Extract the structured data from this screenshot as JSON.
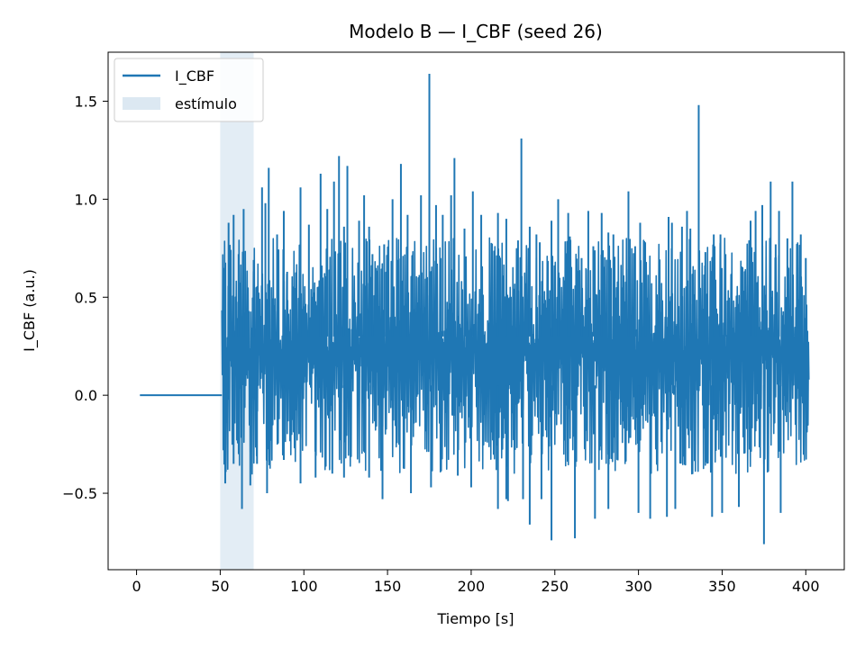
{
  "chart_data": {
    "type": "line",
    "title": "Modelo B — I_CBF (seed 26)",
    "xlabel": "Tiempo [s]",
    "ylabel": "I_CBF (a.u.)",
    "xlim": [
      -17,
      423
    ],
    "ylim": [
      -0.89,
      1.75
    ],
    "xticks": [
      0,
      50,
      100,
      150,
      200,
      250,
      300,
      350,
      400
    ],
    "xtick_labels": [
      "0",
      "50",
      "100",
      "150",
      "200",
      "250",
      "300",
      "350",
      "400"
    ],
    "yticks": [
      -0.5,
      0.0,
      0.5,
      1.0,
      1.5
    ],
    "ytick_labels": [
      "−0.5",
      "0.0",
      "0.5",
      "1.0",
      "1.5"
    ],
    "grid": false,
    "legend_position": "upper-left",
    "colors": {
      "line": "#1f77b4",
      "stimulus": "#dce8f2"
    },
    "stimulus": {
      "name": "estímulo",
      "x_start": 50,
      "x_end": 70
    },
    "series": [
      {
        "name": "I_CBF",
        "baseline": {
          "x_start": 2,
          "x_end": 51,
          "value": 0.0
        },
        "signal": {
          "x_start": 51,
          "x_end": 402,
          "typical_low": -0.3,
          "typical_high": 0.75
        },
        "peaks": [
          [
            52,
            0.65
          ],
          [
            55,
            0.88
          ],
          [
            58,
            0.92
          ],
          [
            61,
            0.72
          ],
          [
            64,
            0.95
          ],
          [
            70,
            0.69
          ],
          [
            75,
            1.06
          ],
          [
            77,
            0.98
          ],
          [
            79,
            1.16
          ],
          [
            84,
            0.82
          ],
          [
            88,
            0.94
          ],
          [
            90,
            0.63
          ],
          [
            98,
            1.06
          ],
          [
            103,
            0.87
          ],
          [
            110,
            1.13
          ],
          [
            114,
            0.95
          ],
          [
            118,
            1.09
          ],
          [
            121,
            1.22
          ],
          [
            124,
            0.86
          ],
          [
            126,
            1.17
          ],
          [
            133,
            0.89
          ],
          [
            136,
            1.02
          ],
          [
            139,
            0.86
          ],
          [
            141,
            0.72
          ],
          [
            148,
            0.77
          ],
          [
            153,
            1.0
          ],
          [
            158,
            1.18
          ],
          [
            162,
            0.92
          ],
          [
            170,
            1.02
          ],
          [
            175,
            1.64
          ],
          [
            179,
            0.97
          ],
          [
            183,
            0.92
          ],
          [
            188,
            1.02
          ],
          [
            190,
            1.21
          ],
          [
            196,
            0.85
          ],
          [
            201,
            1.04
          ],
          [
            206,
            0.92
          ],
          [
            216,
            0.93
          ],
          [
            221,
            0.9
          ],
          [
            228,
            0.79
          ],
          [
            230,
            1.31
          ],
          [
            235,
            0.86
          ],
          [
            239,
            0.82
          ],
          [
            241,
            0.78
          ],
          [
            248,
            0.89
          ],
          [
            252,
            1.0
          ],
          [
            258,
            0.93
          ],
          [
            259,
            0.81
          ],
          [
            266,
            0.7
          ],
          [
            270,
            0.94
          ],
          [
            273,
            0.76
          ],
          [
            278,
            0.93
          ],
          [
            282,
            0.83
          ],
          [
            285,
            0.82
          ],
          [
            294,
            1.04
          ],
          [
            298,
            0.76
          ],
          [
            301,
            0.88
          ],
          [
            304,
            0.78
          ],
          [
            318,
            0.91
          ],
          [
            320,
            0.88
          ],
          [
            326,
            0.86
          ],
          [
            329,
            0.94
          ],
          [
            331,
            0.85
          ],
          [
            336,
            1.48
          ],
          [
            340,
            0.73
          ],
          [
            345,
            0.82
          ],
          [
            349,
            0.82
          ],
          [
            352,
            0.72
          ],
          [
            367,
            0.89
          ],
          [
            370,
            0.94
          ],
          [
            374,
            0.97
          ],
          [
            379,
            1.09
          ],
          [
            382,
            0.77
          ],
          [
            384,
            0.94
          ],
          [
            389,
            0.8
          ],
          [
            392,
            1.09
          ],
          [
            397,
            0.82
          ],
          [
            400,
            0.7
          ]
        ],
        "troughs": [
          [
            53,
            -0.45
          ],
          [
            58,
            -0.35
          ],
          [
            63,
            -0.58
          ],
          [
            68,
            -0.46
          ],
          [
            72,
            -0.35
          ],
          [
            78,
            -0.5
          ],
          [
            88,
            -0.33
          ],
          [
            98,
            -0.45
          ],
          [
            107,
            -0.42
          ],
          [
            117,
            -0.4
          ],
          [
            124,
            -0.42
          ],
          [
            139,
            -0.42
          ],
          [
            147,
            -0.53
          ],
          [
            164,
            -0.5
          ],
          [
            176,
            -0.47
          ],
          [
            192,
            -0.41
          ],
          [
            200,
            -0.47
          ],
          [
            216,
            -0.58
          ],
          [
            221,
            -0.53
          ],
          [
            222,
            -0.54
          ],
          [
            231,
            -0.53
          ],
          [
            235,
            -0.66
          ],
          [
            242,
            -0.53
          ],
          [
            248,
            -0.74
          ],
          [
            262,
            -0.73
          ],
          [
            274,
            -0.63
          ],
          [
            282,
            -0.58
          ],
          [
            300,
            -0.6
          ],
          [
            307,
            -0.63
          ],
          [
            317,
            -0.62
          ],
          [
            322,
            -0.58
          ],
          [
            344,
            -0.62
          ],
          [
            350,
            -0.6
          ],
          [
            360,
            -0.57
          ],
          [
            375,
            -0.76
          ],
          [
            385,
            -0.6
          ]
        ]
      }
    ]
  }
}
